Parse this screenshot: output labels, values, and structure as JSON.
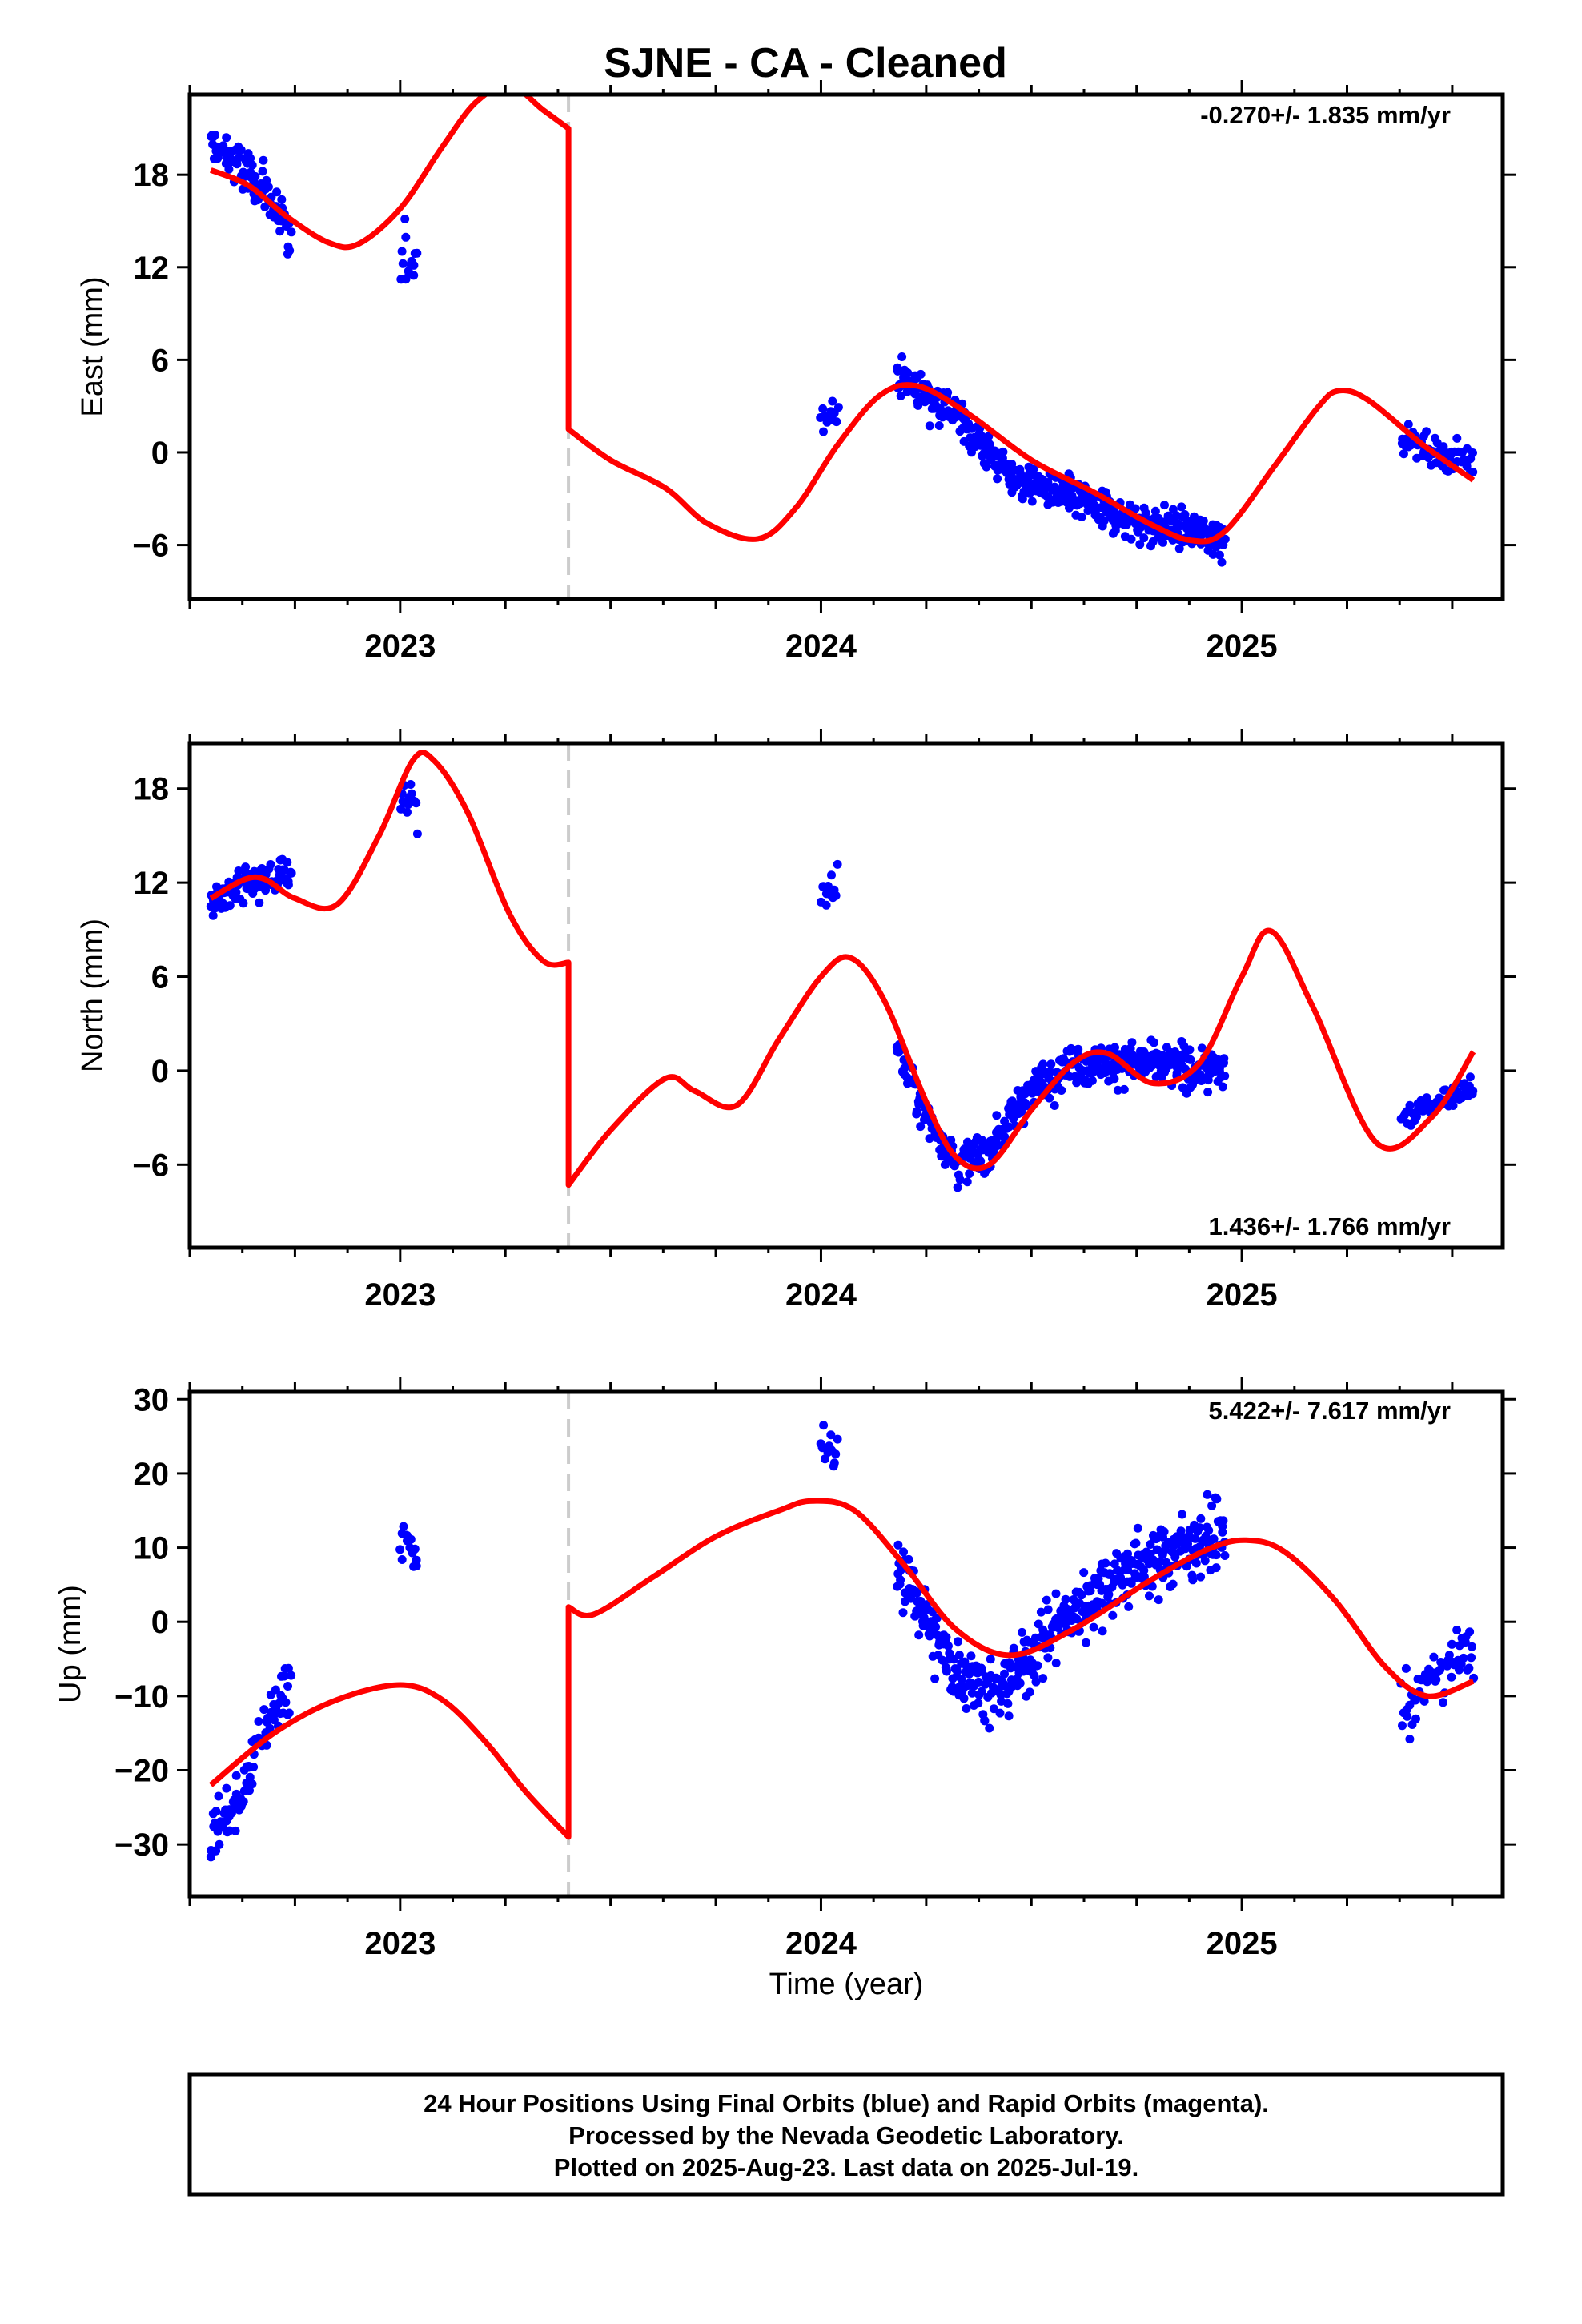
{
  "title": "SJNE  - CA - Cleaned",
  "xlabel": "Time (year)",
  "footer": {
    "line1": "24 Hour Positions Using Final Orbits (blue) and Rapid Orbits (magenta).",
    "line2": "Processed by the Nevada Geodetic Laboratory.",
    "line3": "Plotted on 2025-Aug-23. Last data on 2025-Jul-19."
  },
  "colors": {
    "data": "#0000ff",
    "model": "#ff0000",
    "event": "#cccccc",
    "frame": "#000000"
  },
  "chart_data": [
    {
      "type": "scatter",
      "ylabel": "East (mm)",
      "rate_text": "-0.270+/- 1.835 mm/yr",
      "rate_position": "top-right",
      "xlim": [
        2022.5,
        2025.62
      ],
      "ylim": [
        -9.5,
        23.2
      ],
      "yticks": [
        -6,
        0,
        6,
        12,
        18
      ],
      "xticks": [
        2023,
        2024,
        2025
      ],
      "event_line_x": 2023.4,
      "series": [
        {
          "role": "data",
          "segments": [
            {
              "x0": 2022.55,
              "x1": 2022.74,
              "n": 95,
              "trend": [
                [
                  2022.55,
                  20
                ],
                [
                  2022.62,
                  18.5
                ],
                [
                  2022.68,
                  17
                ],
                [
                  2022.74,
                  13.5
                ]
              ],
              "spread": 2.4
            },
            {
              "x0": 2023.0,
              "x1": 2023.04,
              "n": 14,
              "trend": [
                [
                  2023.0,
                  13
                ],
                [
                  2023.04,
                  12.5
                ]
              ],
              "spread": 3.2
            },
            {
              "x0": 2024.0,
              "x1": 2024.04,
              "n": 12,
              "trend": [
                [
                  2024.0,
                  2.5
                ],
                [
                  2024.04,
                  2.8
                ]
              ],
              "spread": 1.8
            },
            {
              "x0": 2024.18,
              "x1": 2024.96,
              "n": 430,
              "trend": [
                [
                  2024.18,
                  5
                ],
                [
                  2024.3,
                  3
                ],
                [
                  2024.45,
                  -1.5
                ],
                [
                  2024.6,
                  -3
                ],
                [
                  2024.75,
                  -4.5
                ],
                [
                  2024.96,
                  -5.5
                ]
              ],
              "spread": 2.0
            },
            {
              "x0": 2025.38,
              "x1": 2025.55,
              "n": 60,
              "trend": [
                [
                  2025.38,
                  1
                ],
                [
                  2025.46,
                  0
                ],
                [
                  2025.55,
                  -0.5
                ]
              ],
              "spread": 1.4
            }
          ]
        },
        {
          "role": "model",
          "knots": [
            [
              2022.55,
              18.3
            ],
            [
              2022.64,
              17.3
            ],
            [
              2022.73,
              15.3
            ],
            [
              2022.83,
              13.6
            ],
            [
              2022.9,
              13.5
            ],
            [
              2023.0,
              15.8
            ],
            [
              2023.1,
              19.8
            ],
            [
              2023.18,
              22.7
            ],
            [
              2023.26,
              23.8
            ],
            [
              2023.34,
              22.2
            ],
            [
              2023.4,
              21.0
            ],
            [
              2023.4,
              12
            ],
            [
              2023.4,
              1.5
            ],
            [
              2023.5,
              -0.5
            ],
            [
              2023.63,
              -2.3
            ],
            [
              2023.73,
              -4.6
            ],
            [
              2023.85,
              -5.6
            ],
            [
              2023.94,
              -3.6
            ],
            [
              2024.04,
              0.5
            ],
            [
              2024.14,
              3.7
            ],
            [
              2024.23,
              4.3
            ],
            [
              2024.35,
              2.5
            ],
            [
              2024.5,
              -0.5
            ],
            [
              2024.65,
              -2.6
            ],
            [
              2024.78,
              -4.6
            ],
            [
              2024.88,
              -5.7
            ],
            [
              2024.96,
              -5.1
            ],
            [
              2025.08,
              -0.8
            ],
            [
              2025.18,
              2.9
            ],
            [
              2025.23,
              4.0
            ],
            [
              2025.3,
              3.4
            ],
            [
              2025.43,
              0.5
            ],
            [
              2025.55,
              -1.8
            ]
          ]
        }
      ]
    },
    {
      "type": "scatter",
      "ylabel": "North (mm)",
      "rate_text": "1.436+/- 1.766 mm/yr",
      "rate_position": "bottom-right",
      "xlim": [
        2022.5,
        2025.62
      ],
      "ylim": [
        -11.3,
        20.9
      ],
      "yticks": [
        -6,
        0,
        6,
        12,
        18
      ],
      "xticks": [
        2023,
        2024,
        2025
      ],
      "event_line_x": 2023.4,
      "series": [
        {
          "role": "data",
          "segments": [
            {
              "x0": 2022.55,
              "x1": 2022.74,
              "n": 95,
              "trend": [
                [
                  2022.55,
                  11
                ],
                [
                  2022.65,
                  12
                ],
                [
                  2022.74,
                  12.5
                ]
              ],
              "spread": 1.8
            },
            {
              "x0": 2023.0,
              "x1": 2023.04,
              "n": 12,
              "trend": [
                [
                  2023.0,
                  18
                ],
                [
                  2023.04,
                  17
                ]
              ],
              "spread": 2.8
            },
            {
              "x0": 2024.0,
              "x1": 2024.04,
              "n": 12,
              "trend": [
                [
                  2024.0,
                  11
                ],
                [
                  2024.04,
                  12
                ]
              ],
              "spread": 2.0
            },
            {
              "x0": 2024.18,
              "x1": 2024.96,
              "n": 430,
              "trend": [
                [
                  2024.18,
                  1.5
                ],
                [
                  2024.25,
                  -3
                ],
                [
                  2024.33,
                  -6
                ],
                [
                  2024.4,
                  -5
                ],
                [
                  2024.5,
                  -1
                ],
                [
                  2024.6,
                  0.5
                ],
                [
                  2024.75,
                  0.5
                ],
                [
                  2024.96,
                  0
                ]
              ],
              "spread": 2.0
            },
            {
              "x0": 2025.38,
              "x1": 2025.55,
              "n": 60,
              "trend": [
                [
                  2025.38,
                  -3
                ],
                [
                  2025.46,
                  -2
                ],
                [
                  2025.55,
                  -1
                ]
              ],
              "spread": 1.3
            }
          ]
        },
        {
          "role": "model",
          "knots": [
            [
              2022.55,
              11.0
            ],
            [
              2022.63,
              12.2
            ],
            [
              2022.68,
              12.2
            ],
            [
              2022.75,
              11.0
            ],
            [
              2022.85,
              10.6
            ],
            [
              2022.95,
              15.0
            ],
            [
              2023.03,
              19.8
            ],
            [
              2023.08,
              19.8
            ],
            [
              2023.16,
              16.5
            ],
            [
              2023.26,
              10.0
            ],
            [
              2023.34,
              7.0
            ],
            [
              2023.4,
              6.9
            ],
            [
              2023.4,
              0.5
            ],
            [
              2023.4,
              -7.3
            ],
            [
              2023.5,
              -3.8
            ],
            [
              2023.63,
              -0.5
            ],
            [
              2023.7,
              -1.3
            ],
            [
              2023.8,
              -2.2
            ],
            [
              2023.9,
              2.0
            ],
            [
              2024.0,
              6.0
            ],
            [
              2024.07,
              7.2
            ],
            [
              2024.15,
              4.5
            ],
            [
              2024.25,
              -2.0
            ],
            [
              2024.32,
              -5.5
            ],
            [
              2024.4,
              -6.0
            ],
            [
              2024.5,
              -2.5
            ],
            [
              2024.6,
              0.5
            ],
            [
              2024.68,
              1.1
            ],
            [
              2024.79,
              -0.8
            ],
            [
              2024.9,
              0.5
            ],
            [
              2025.0,
              6.0
            ],
            [
              2025.07,
              8.9
            ],
            [
              2025.17,
              4.0
            ],
            [
              2025.32,
              -4.6
            ],
            [
              2025.45,
              -3.0
            ],
            [
              2025.55,
              1.2
            ]
          ]
        }
      ]
    },
    {
      "type": "scatter",
      "ylabel": "Up (mm)",
      "rate_text": "5.422+/- 7.617 mm/yr",
      "rate_position": "top-right",
      "xlim": [
        2022.5,
        2025.62
      ],
      "ylim": [
        -37,
        31
      ],
      "yticks": [
        -30,
        -20,
        -10,
        0,
        10,
        20,
        30
      ],
      "xticks": [
        2023,
        2024,
        2025
      ],
      "event_line_x": 2023.4,
      "series": [
        {
          "role": "data",
          "segments": [
            {
              "x0": 2022.55,
              "x1": 2022.74,
              "n": 95,
              "trend": [
                [
                  2022.55,
                  -29
                ],
                [
                  2022.62,
                  -24
                ],
                [
                  2022.68,
                  -14
                ],
                [
                  2022.74,
                  -8
                ]
              ],
              "spread": 5.5
            },
            {
              "x0": 2023.0,
              "x1": 2023.04,
              "n": 14,
              "trend": [
                [
                  2023.0,
                  12
                ],
                [
                  2023.04,
                  8
                ]
              ],
              "spread": 6.0
            },
            {
              "x0": 2024.0,
              "x1": 2024.04,
              "n": 12,
              "trend": [
                [
                  2024.0,
                  24
                ],
                [
                  2024.04,
                  22
                ]
              ],
              "spread": 4.5
            },
            {
              "x0": 2024.18,
              "x1": 2024.96,
              "n": 430,
              "trend": [
                [
                  2024.18,
                  8
                ],
                [
                  2024.3,
                  -5
                ],
                [
                  2024.42,
                  -10
                ],
                [
                  2024.55,
                  -1
                ],
                [
                  2024.7,
                  6
                ],
                [
                  2024.85,
                  10
                ],
                [
                  2024.96,
                  12
                ]
              ],
              "spread": 7.0
            },
            {
              "x0": 2025.38,
              "x1": 2025.55,
              "n": 60,
              "trend": [
                [
                  2025.38,
                  -12
                ],
                [
                  2025.46,
                  -7
                ],
                [
                  2025.55,
                  -4
                ]
              ],
              "spread": 6.5
            }
          ]
        },
        {
          "role": "model",
          "knots": [
            [
              2022.55,
              -22
            ],
            [
              2022.7,
              -15
            ],
            [
              2022.85,
              -10.5
            ],
            [
              2023.0,
              -8.5
            ],
            [
              2023.1,
              -10.5
            ],
            [
              2023.2,
              -16
            ],
            [
              2023.3,
              -23
            ],
            [
              2023.4,
              -29
            ],
            [
              2023.4,
              -15
            ],
            [
              2023.4,
              2
            ],
            [
              2023.46,
              1.0
            ],
            [
              2023.6,
              6
            ],
            [
              2023.75,
              11.5
            ],
            [
              2023.9,
              15
            ],
            [
              2023.98,
              16.3
            ],
            [
              2024.08,
              15
            ],
            [
              2024.2,
              7.5
            ],
            [
              2024.32,
              -1
            ],
            [
              2024.45,
              -4.5
            ],
            [
              2024.6,
              -1
            ],
            [
              2024.78,
              5.5
            ],
            [
              2024.92,
              9.8
            ],
            [
              2025.01,
              11
            ],
            [
              2025.1,
              9.5
            ],
            [
              2025.22,
              3
            ],
            [
              2025.34,
              -6
            ],
            [
              2025.44,
              -10
            ],
            [
              2025.55,
              -8
            ]
          ]
        }
      ]
    }
  ]
}
